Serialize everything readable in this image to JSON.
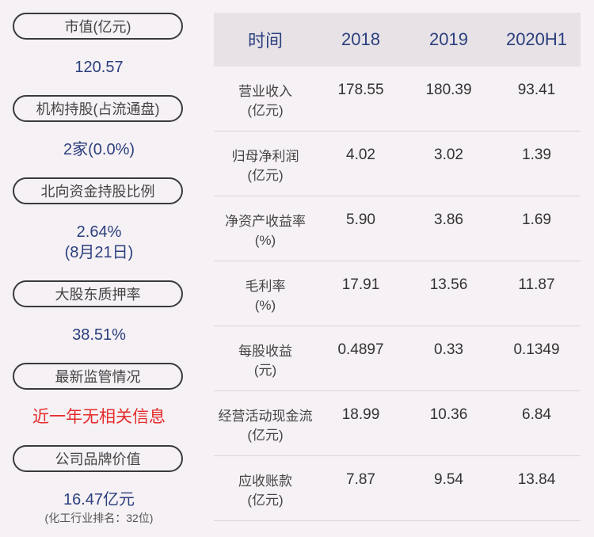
{
  "left": {
    "items": [
      {
        "label": "市值(亿元)",
        "value_lines": [
          "120.57"
        ]
      },
      {
        "label": "机构持股(占流通盘)",
        "value_lines": [
          "2家(0.0%)"
        ]
      },
      {
        "label": "北向资金持股比例",
        "value_lines": [
          "2.64%",
          "(8月21日)"
        ]
      },
      {
        "label": "大股东质押率",
        "value_lines": [
          "38.51%"
        ]
      },
      {
        "label": "最新监管情况",
        "value_lines": [
          "近一年无相关信息"
        ]
      },
      {
        "label": "公司品牌价值",
        "value_lines": [
          "16.47亿元"
        ],
        "note": "(化工行业排名：32位)"
      }
    ]
  },
  "table": {
    "headers": [
      "时间",
      "2018",
      "2019",
      "2020H1"
    ],
    "rows": [
      {
        "label": [
          "营业收入",
          "(亿元)"
        ],
        "values": [
          "178.55",
          "180.39",
          "93.41"
        ]
      },
      {
        "label": [
          "归母净利润",
          "(亿元)"
        ],
        "values": [
          "4.02",
          "3.02",
          "1.39"
        ]
      },
      {
        "label": [
          "净资产收益率",
          "(%)"
        ],
        "values": [
          "5.90",
          "3.86",
          "1.69"
        ]
      },
      {
        "label": [
          "毛利率",
          "(%)"
        ],
        "values": [
          "17.91",
          "13.56",
          "11.87"
        ]
      },
      {
        "label": [
          "每股收益",
          "(元)"
        ],
        "values": [
          "0.4897",
          "0.33",
          "0.1349"
        ]
      },
      {
        "label": [
          "经营活动现金流",
          "(亿元)"
        ],
        "values": [
          "18.99",
          "10.36",
          "6.84"
        ]
      },
      {
        "label": [
          "应收账款",
          "(亿元)"
        ],
        "values": [
          "7.87",
          "9.54",
          "13.84"
        ]
      }
    ]
  },
  "colors": {
    "background": "#f5f1f4",
    "header_bg": "#e6e2e6",
    "value_blue": "#2b3f7e",
    "alert_red": "#e52b2b"
  }
}
